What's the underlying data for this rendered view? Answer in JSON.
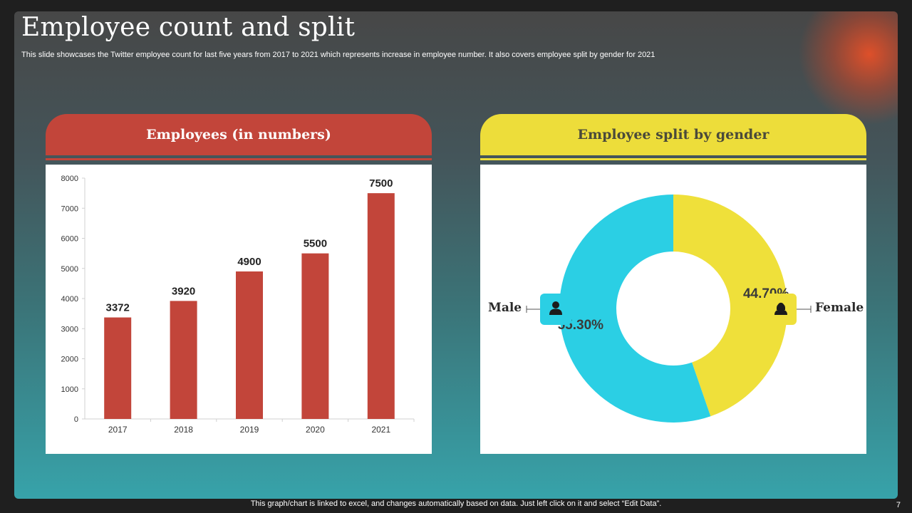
{
  "slide": {
    "title": "Employee count and split",
    "subtitle": "This slide showcases the Twitter employee count for last five years from 2017 to 2021 which represents increase in employee number. It also covers employee split by gender for 2021",
    "footer": "This graph/chart is linked to excel,  and changes automatically based on data. Just left click on it and select “Edit Data”.",
    "page_number": "7"
  },
  "colors": {
    "bar": "#c2453a",
    "male": "#2bcfe4",
    "female": "#efe03a",
    "header_left": "#c2453a",
    "header_right": "#eddd3a"
  },
  "left_panel": {
    "header": "Employees (in numbers)"
  },
  "right_panel": {
    "header": "Employee split by gender",
    "male_label": "Male",
    "female_label": "Female",
    "male_icon": "male-user-icon",
    "female_icon": "female-user-icon"
  },
  "chart_data": [
    {
      "type": "bar",
      "categories": [
        "2017",
        "2018",
        "2019",
        "2020",
        "2021"
      ],
      "values": [
        3372,
        3920,
        4900,
        5500,
        7500
      ],
      "ylim": [
        0,
        8000
      ],
      "yticks": [
        0,
        1000,
        2000,
        3000,
        4000,
        5000,
        6000,
        7000,
        8000
      ],
      "title": "Employees (in numbers)",
      "xlabel": "",
      "ylabel": "",
      "data_labels": true,
      "grid": false
    },
    {
      "type": "pie",
      "donut": true,
      "title": "Employee split by gender",
      "slices": [
        {
          "label": "Female",
          "value": 44.7,
          "display": "44.70%",
          "color": "#efe03a"
        },
        {
          "label": "Male",
          "value": 55.3,
          "display": "55.30%",
          "color": "#2bcfe4"
        }
      ]
    }
  ]
}
